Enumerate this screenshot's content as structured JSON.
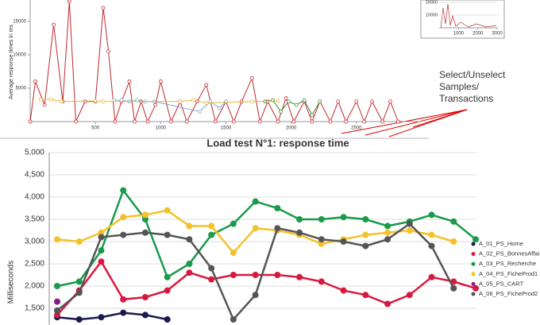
{
  "chart_data": [
    {
      "type": "line",
      "y_label": "Average response times in ms",
      "xlim": [
        0,
        3000
      ],
      "ylim": [
        0,
        18200
      ],
      "xticks": [
        500,
        1000,
        1500,
        2000,
        2500
      ],
      "yticks": [
        5000,
        10000,
        15000
      ],
      "series": [
        {
          "color": "#c0282e",
          "x": [
            0,
            40,
            110,
            180,
            250,
            300,
            350,
            420,
            500,
            560,
            600,
            650,
            700,
            760,
            800,
            850,
            900,
            960,
            1000,
            1080,
            1150,
            1200,
            1280,
            1350,
            1420,
            1500,
            1560,
            1620,
            1700,
            1760,
            1820,
            1900,
            1960,
            2020,
            2100,
            2160,
            2220,
            2300,
            2360,
            2420,
            2500,
            2560,
            2620,
            2700,
            2760,
            2820
          ],
          "values": [
            0,
            6000,
            2500,
            14500,
            3000,
            18000,
            0,
            3000,
            3000,
            17000,
            10500,
            0,
            3000,
            6000,
            0,
            3000,
            0,
            2500,
            6000,
            0,
            3000,
            0,
            3000,
            5500,
            0,
            3000,
            0,
            3000,
            6500,
            0,
            3000,
            0,
            3500,
            0,
            3000,
            0,
            3000,
            0,
            3000,
            0,
            3000,
            0,
            3000,
            0,
            3000,
            0
          ]
        },
        {
          "color": "#7fa8d0",
          "x": [
            640,
            700,
            760,
            820,
            880,
            950,
            1300,
            1380,
            1450,
            1500
          ],
          "values": [
            3200,
            3200,
            3000,
            3200,
            3000,
            3000,
            1500,
            3000,
            2000,
            3000
          ]
        },
        {
          "color": "#3a8a3a",
          "x": [
            1800,
            1860,
            1920,
            1980,
            2040,
            2100,
            2160,
            2220
          ],
          "values": [
            3000,
            3200,
            1500,
            3000,
            2500,
            3200,
            1000,
            3000
          ]
        },
        {
          "color": "#e8b830",
          "x": [
            80,
            160,
            240,
            500,
            560,
            1150,
            1250,
            1350,
            1700,
            1900
          ],
          "values": [
            3300,
            3300,
            3000,
            3100,
            3000,
            3000,
            3200,
            2800,
            3000,
            3100
          ]
        }
      ],
      "annotation": [
        "Select/Unselect",
        "Samples/",
        "Transactions"
      ],
      "inset": {
        "xlim": [
          0,
          3000
        ],
        "ylim": [
          0,
          21900
        ],
        "xticks": [
          1000,
          2000,
          3000
        ],
        "yticks": [
          10000,
          20000
        ]
      }
    },
    {
      "type": "line",
      "title": "Load test N°1: response time",
      "y_label": "Milliseconds",
      "ylim": [
        1300,
        5000
      ],
      "yticks": [
        {
          "value": 1500,
          "label": "1,500"
        },
        {
          "value": 2000,
          "label": "2,000"
        },
        {
          "value": 2500,
          "label": "2,500"
        },
        {
          "value": 3000,
          "label": "3,000"
        },
        {
          "value": 3500,
          "label": "3,500"
        },
        {
          "value": 4000,
          "label": "4,000"
        },
        {
          "value": 4500,
          "label": "4,500"
        },
        {
          "value": 5000,
          "label": "5,000"
        }
      ],
      "grid": true,
      "categories": [
        null,
        null,
        null,
        null,
        null,
        null,
        null,
        null,
        null,
        null,
        null,
        null,
        null,
        null,
        null,
        null,
        null,
        null,
        null,
        null
      ],
      "series": [
        {
          "name": "A_01_PS_Home",
          "color": "#1a1a4e",
          "values": [
            1300,
            1250,
            1300,
            1400,
            1350,
            1250,
            null,
            null,
            null,
            null,
            null,
            null,
            null,
            null,
            null,
            null,
            null,
            null,
            null,
            null
          ]
        },
        {
          "name": "A_02_PS_BonnesAffai",
          "color": "#d7193f",
          "values": [
            1350,
            1900,
            2550,
            1700,
            1750,
            1900,
            2300,
            2150,
            2250,
            2250,
            2250,
            2200,
            2100,
            1900,
            1800,
            1600,
            1800,
            2200,
            2100,
            1950
          ]
        },
        {
          "name": "A_03_PS_Recherche",
          "color": "#1a9a4a",
          "values": [
            2000,
            2100,
            2800,
            4150,
            3500,
            2200,
            2500,
            3150,
            3400,
            3900,
            3750,
            3500,
            3500,
            3550,
            3500,
            3350,
            3450,
            3600,
            3450,
            3050
          ]
        },
        {
          "name": "A_04_PS_FicheProd1",
          "color": "#f5c12a",
          "values": [
            3050,
            3000,
            3200,
            3550,
            3600,
            3700,
            3350,
            3350,
            2750,
            3300,
            3250,
            3150,
            2950,
            3050,
            3150,
            3200,
            3250,
            3150,
            3000,
            null
          ]
        },
        {
          "name": "A_05_PS_CART",
          "color": "#8a1a8a",
          "values": [
            1650,
            null,
            null,
            null,
            null,
            null,
            null,
            null,
            null,
            null,
            null,
            null,
            null,
            null,
            null,
            null,
            null,
            null,
            null,
            null
          ]
        },
        {
          "name": "A_06_PS_FicheProd2",
          "color": "#555555",
          "values": [
            1450,
            1850,
            3100,
            3150,
            3200,
            3150,
            3050,
            2400,
            1250,
            1800,
            3300,
            3200,
            3050,
            3000,
            2900,
            3050,
            3400,
            2900,
            1950,
            null
          ]
        }
      ]
    }
  ]
}
